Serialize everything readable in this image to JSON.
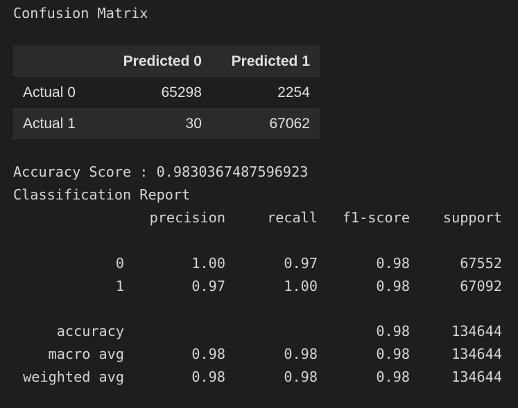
{
  "confusion_matrix": {
    "title": "Confusion Matrix",
    "columns": [
      "",
      "Predicted 0",
      "Predicted 1"
    ],
    "rows": [
      {
        "label": "Actual 0",
        "values": [
          "65298",
          "2254"
        ]
      },
      {
        "label": "Actual 1",
        "values": [
          "30",
          "67062"
        ]
      }
    ]
  },
  "accuracy_line": "Accuracy Score : 0.9830367487596923",
  "report": {
    "title": "Classification Report",
    "headers": [
      "precision",
      "recall",
      "f1-score",
      "support"
    ],
    "rows": [
      {
        "label": "0",
        "precision": "1.00",
        "recall": "0.97",
        "f1": "0.98",
        "support": "67552"
      },
      {
        "label": "1",
        "precision": "0.97",
        "recall": "1.00",
        "f1": "0.98",
        "support": "67092"
      },
      {
        "label": "accuracy",
        "precision": "",
        "recall": "",
        "f1": "0.98",
        "support": "134644"
      },
      {
        "label": "macro avg",
        "precision": "0.98",
        "recall": "0.98",
        "f1": "0.98",
        "support": "134644"
      },
      {
        "label": "weighted avg",
        "precision": "0.98",
        "recall": "0.98",
        "f1": "0.98",
        "support": "134644"
      }
    ]
  }
}
